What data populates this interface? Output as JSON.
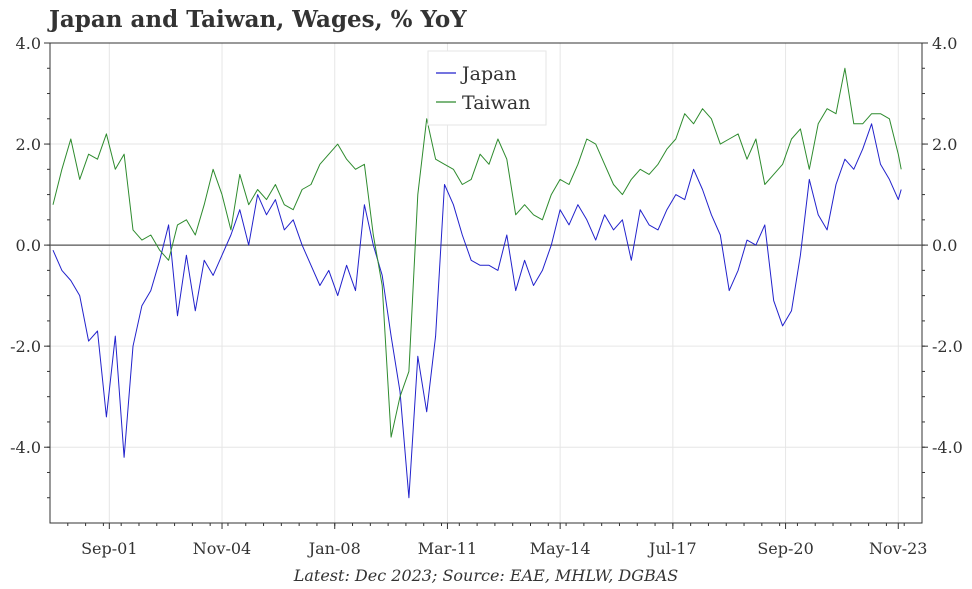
{
  "chart_data": {
    "type": "line",
    "title": "Japan and Taiwan, Wages, % YoY",
    "caption": "Latest: Dec 2023; Source: EAE, MHLW, DGBAS",
    "xlabel": "",
    "ylabel": "",
    "ylim": [
      -5.5,
      4.0
    ],
    "yticks": [
      4.0,
      2.0,
      0.0,
      -2.0,
      -4.0
    ],
    "ytick_labels": [
      "4.0",
      "2.0",
      "0.0",
      "-2.0",
      "-4.0"
    ],
    "xlim": [
      "2000-01",
      "2024-07"
    ],
    "xticks": [
      "2001-09",
      "2004-11",
      "2008-01",
      "2011-03",
      "2014-05",
      "2017-07",
      "2020-09",
      "2023-11"
    ],
    "xtick_labels": [
      "Sep-01",
      "Nov-04",
      "Jan-08",
      "Mar-11",
      "May-14",
      "Jul-17",
      "Sep-20",
      "Nov-23"
    ],
    "grid": true,
    "zero_line": true,
    "legend_position": "top-center",
    "series": [
      {
        "name": "Japan",
        "color": "#2222cc",
        "points": [
          [
            "2000-02",
            -0.1
          ],
          [
            "2000-05",
            -0.5
          ],
          [
            "2000-08",
            -0.7
          ],
          [
            "2000-11",
            -1.0
          ],
          [
            "2001-02",
            -1.9
          ],
          [
            "2001-05",
            -1.7
          ],
          [
            "2001-08",
            -3.4
          ],
          [
            "2001-11",
            -1.8
          ],
          [
            "2002-02",
            -4.2
          ],
          [
            "2002-05",
            -2.0
          ],
          [
            "2002-08",
            -1.2
          ],
          [
            "2002-11",
            -0.9
          ],
          [
            "2003-02",
            -0.3
          ],
          [
            "2003-05",
            0.4
          ],
          [
            "2003-08",
            -1.4
          ],
          [
            "2003-11",
            -0.2
          ],
          [
            "2004-02",
            -1.3
          ],
          [
            "2004-05",
            -0.3
          ],
          [
            "2004-08",
            -0.6
          ],
          [
            "2004-11",
            -0.2
          ],
          [
            "2005-02",
            0.2
          ],
          [
            "2005-05",
            0.7
          ],
          [
            "2005-08",
            0.0
          ],
          [
            "2005-11",
            1.0
          ],
          [
            "2006-02",
            0.6
          ],
          [
            "2006-05",
            0.9
          ],
          [
            "2006-08",
            0.3
          ],
          [
            "2006-11",
            0.5
          ],
          [
            "2007-02",
            0.0
          ],
          [
            "2007-05",
            -0.4
          ],
          [
            "2007-08",
            -0.8
          ],
          [
            "2007-11",
            -0.5
          ],
          [
            "2008-02",
            -1.0
          ],
          [
            "2008-05",
            -0.4
          ],
          [
            "2008-08",
            -0.9
          ],
          [
            "2008-11",
            0.8
          ],
          [
            "2009-02",
            0.0
          ],
          [
            "2009-05",
            -0.6
          ],
          [
            "2009-08",
            -1.8
          ],
          [
            "2009-11",
            -2.9
          ],
          [
            "2010-02",
            -5.0
          ],
          [
            "2010-05",
            -2.2
          ],
          [
            "2010-08",
            -3.3
          ],
          [
            "2010-11",
            -1.8
          ],
          [
            "2011-02",
            1.2
          ],
          [
            "2011-05",
            0.8
          ],
          [
            "2011-08",
            0.2
          ],
          [
            "2011-11",
            -0.3
          ],
          [
            "2012-02",
            -0.4
          ],
          [
            "2012-05",
            -0.4
          ],
          [
            "2012-08",
            -0.5
          ],
          [
            "2012-11",
            0.2
          ],
          [
            "2013-02",
            -0.9
          ],
          [
            "2013-05",
            -0.3
          ],
          [
            "2013-08",
            -0.8
          ],
          [
            "2013-11",
            -0.5
          ],
          [
            "2014-02",
            0.0
          ],
          [
            "2014-05",
            0.7
          ],
          [
            "2014-08",
            0.4
          ],
          [
            "2014-11",
            0.8
          ],
          [
            "2015-02",
            0.5
          ],
          [
            "2015-05",
            0.1
          ],
          [
            "2015-08",
            0.6
          ],
          [
            "2015-11",
            0.3
          ],
          [
            "2016-02",
            0.5
          ],
          [
            "2016-05",
            -0.3
          ],
          [
            "2016-08",
            0.7
          ],
          [
            "2016-11",
            0.4
          ],
          [
            "2017-02",
            0.3
          ],
          [
            "2017-05",
            0.7
          ],
          [
            "2017-08",
            1.0
          ],
          [
            "2017-11",
            0.9
          ],
          [
            "2018-02",
            1.5
          ],
          [
            "2018-05",
            1.1
          ],
          [
            "2018-08",
            0.6
          ],
          [
            "2018-11",
            0.2
          ],
          [
            "2019-02",
            -0.9
          ],
          [
            "2019-05",
            -0.5
          ],
          [
            "2019-08",
            0.1
          ],
          [
            "2019-11",
            0.0
          ],
          [
            "2020-02",
            0.4
          ],
          [
            "2020-05",
            -1.1
          ],
          [
            "2020-08",
            -1.6
          ],
          [
            "2020-11",
            -1.3
          ],
          [
            "2021-02",
            -0.2
          ],
          [
            "2021-05",
            1.3
          ],
          [
            "2021-08",
            0.6
          ],
          [
            "2021-11",
            0.3
          ],
          [
            "2022-02",
            1.2
          ],
          [
            "2022-05",
            1.7
          ],
          [
            "2022-08",
            1.5
          ],
          [
            "2022-11",
            1.9
          ],
          [
            "2023-02",
            2.4
          ],
          [
            "2023-05",
            1.6
          ],
          [
            "2023-08",
            1.3
          ],
          [
            "2023-11",
            0.9
          ],
          [
            "2023-12",
            1.1
          ]
        ]
      },
      {
        "name": "Taiwan",
        "color": "#2e8b2e",
        "points": [
          [
            "2000-02",
            0.8
          ],
          [
            "2000-05",
            1.5
          ],
          [
            "2000-08",
            2.1
          ],
          [
            "2000-11",
            1.3
          ],
          [
            "2001-02",
            1.8
          ],
          [
            "2001-05",
            1.7
          ],
          [
            "2001-08",
            2.2
          ],
          [
            "2001-11",
            1.5
          ],
          [
            "2002-02",
            1.8
          ],
          [
            "2002-05",
            0.3
          ],
          [
            "2002-08",
            0.1
          ],
          [
            "2002-11",
            0.2
          ],
          [
            "2003-02",
            -0.1
          ],
          [
            "2003-05",
            -0.3
          ],
          [
            "2003-08",
            0.4
          ],
          [
            "2003-11",
            0.5
          ],
          [
            "2004-02",
            0.2
          ],
          [
            "2004-05",
            0.8
          ],
          [
            "2004-08",
            1.5
          ],
          [
            "2004-11",
            1.0
          ],
          [
            "2005-02",
            0.3
          ],
          [
            "2005-05",
            1.4
          ],
          [
            "2005-08",
            0.8
          ],
          [
            "2005-11",
            1.1
          ],
          [
            "2006-02",
            0.9
          ],
          [
            "2006-05",
            1.2
          ],
          [
            "2006-08",
            0.8
          ],
          [
            "2006-11",
            0.7
          ],
          [
            "2007-02",
            1.1
          ],
          [
            "2007-05",
            1.2
          ],
          [
            "2007-08",
            1.6
          ],
          [
            "2007-11",
            1.8
          ],
          [
            "2008-02",
            2.0
          ],
          [
            "2008-05",
            1.7
          ],
          [
            "2008-08",
            1.5
          ],
          [
            "2008-11",
            1.6
          ],
          [
            "2009-02",
            0.2
          ],
          [
            "2009-05",
            -0.8
          ],
          [
            "2009-08",
            -3.8
          ],
          [
            "2009-11",
            -3.0
          ],
          [
            "2010-02",
            -2.5
          ],
          [
            "2010-05",
            1.0
          ],
          [
            "2010-08",
            2.5
          ],
          [
            "2010-11",
            1.7
          ],
          [
            "2011-02",
            1.6
          ],
          [
            "2011-05",
            1.5
          ],
          [
            "2011-08",
            1.2
          ],
          [
            "2011-11",
            1.3
          ],
          [
            "2012-02",
            1.8
          ],
          [
            "2012-05",
            1.6
          ],
          [
            "2012-08",
            2.1
          ],
          [
            "2012-11",
            1.7
          ],
          [
            "2013-02",
            0.6
          ],
          [
            "2013-05",
            0.8
          ],
          [
            "2013-08",
            0.6
          ],
          [
            "2013-11",
            0.5
          ],
          [
            "2014-02",
            1.0
          ],
          [
            "2014-05",
            1.3
          ],
          [
            "2014-08",
            1.2
          ],
          [
            "2014-11",
            1.6
          ],
          [
            "2015-02",
            2.1
          ],
          [
            "2015-05",
            2.0
          ],
          [
            "2015-08",
            1.6
          ],
          [
            "2015-11",
            1.2
          ],
          [
            "2016-02",
            1.0
          ],
          [
            "2016-05",
            1.3
          ],
          [
            "2016-08",
            1.5
          ],
          [
            "2016-11",
            1.4
          ],
          [
            "2017-02",
            1.6
          ],
          [
            "2017-05",
            1.9
          ],
          [
            "2017-08",
            2.1
          ],
          [
            "2017-11",
            2.6
          ],
          [
            "2018-02",
            2.4
          ],
          [
            "2018-05",
            2.7
          ],
          [
            "2018-08",
            2.5
          ],
          [
            "2018-11",
            2.0
          ],
          [
            "2019-02",
            2.1
          ],
          [
            "2019-05",
            2.2
          ],
          [
            "2019-08",
            1.7
          ],
          [
            "2019-11",
            2.1
          ],
          [
            "2020-02",
            1.2
          ],
          [
            "2020-05",
            1.4
          ],
          [
            "2020-08",
            1.6
          ],
          [
            "2020-11",
            2.1
          ],
          [
            "2021-02",
            2.3
          ],
          [
            "2021-05",
            1.5
          ],
          [
            "2021-08",
            2.4
          ],
          [
            "2021-11",
            2.7
          ],
          [
            "2022-02",
            2.6
          ],
          [
            "2022-05",
            3.5
          ],
          [
            "2022-08",
            2.4
          ],
          [
            "2022-11",
            2.4
          ],
          [
            "2023-02",
            2.6
          ],
          [
            "2023-05",
            2.6
          ],
          [
            "2023-08",
            2.5
          ],
          [
            "2023-11",
            1.8
          ],
          [
            "2023-12",
            1.5
          ]
        ]
      }
    ]
  }
}
